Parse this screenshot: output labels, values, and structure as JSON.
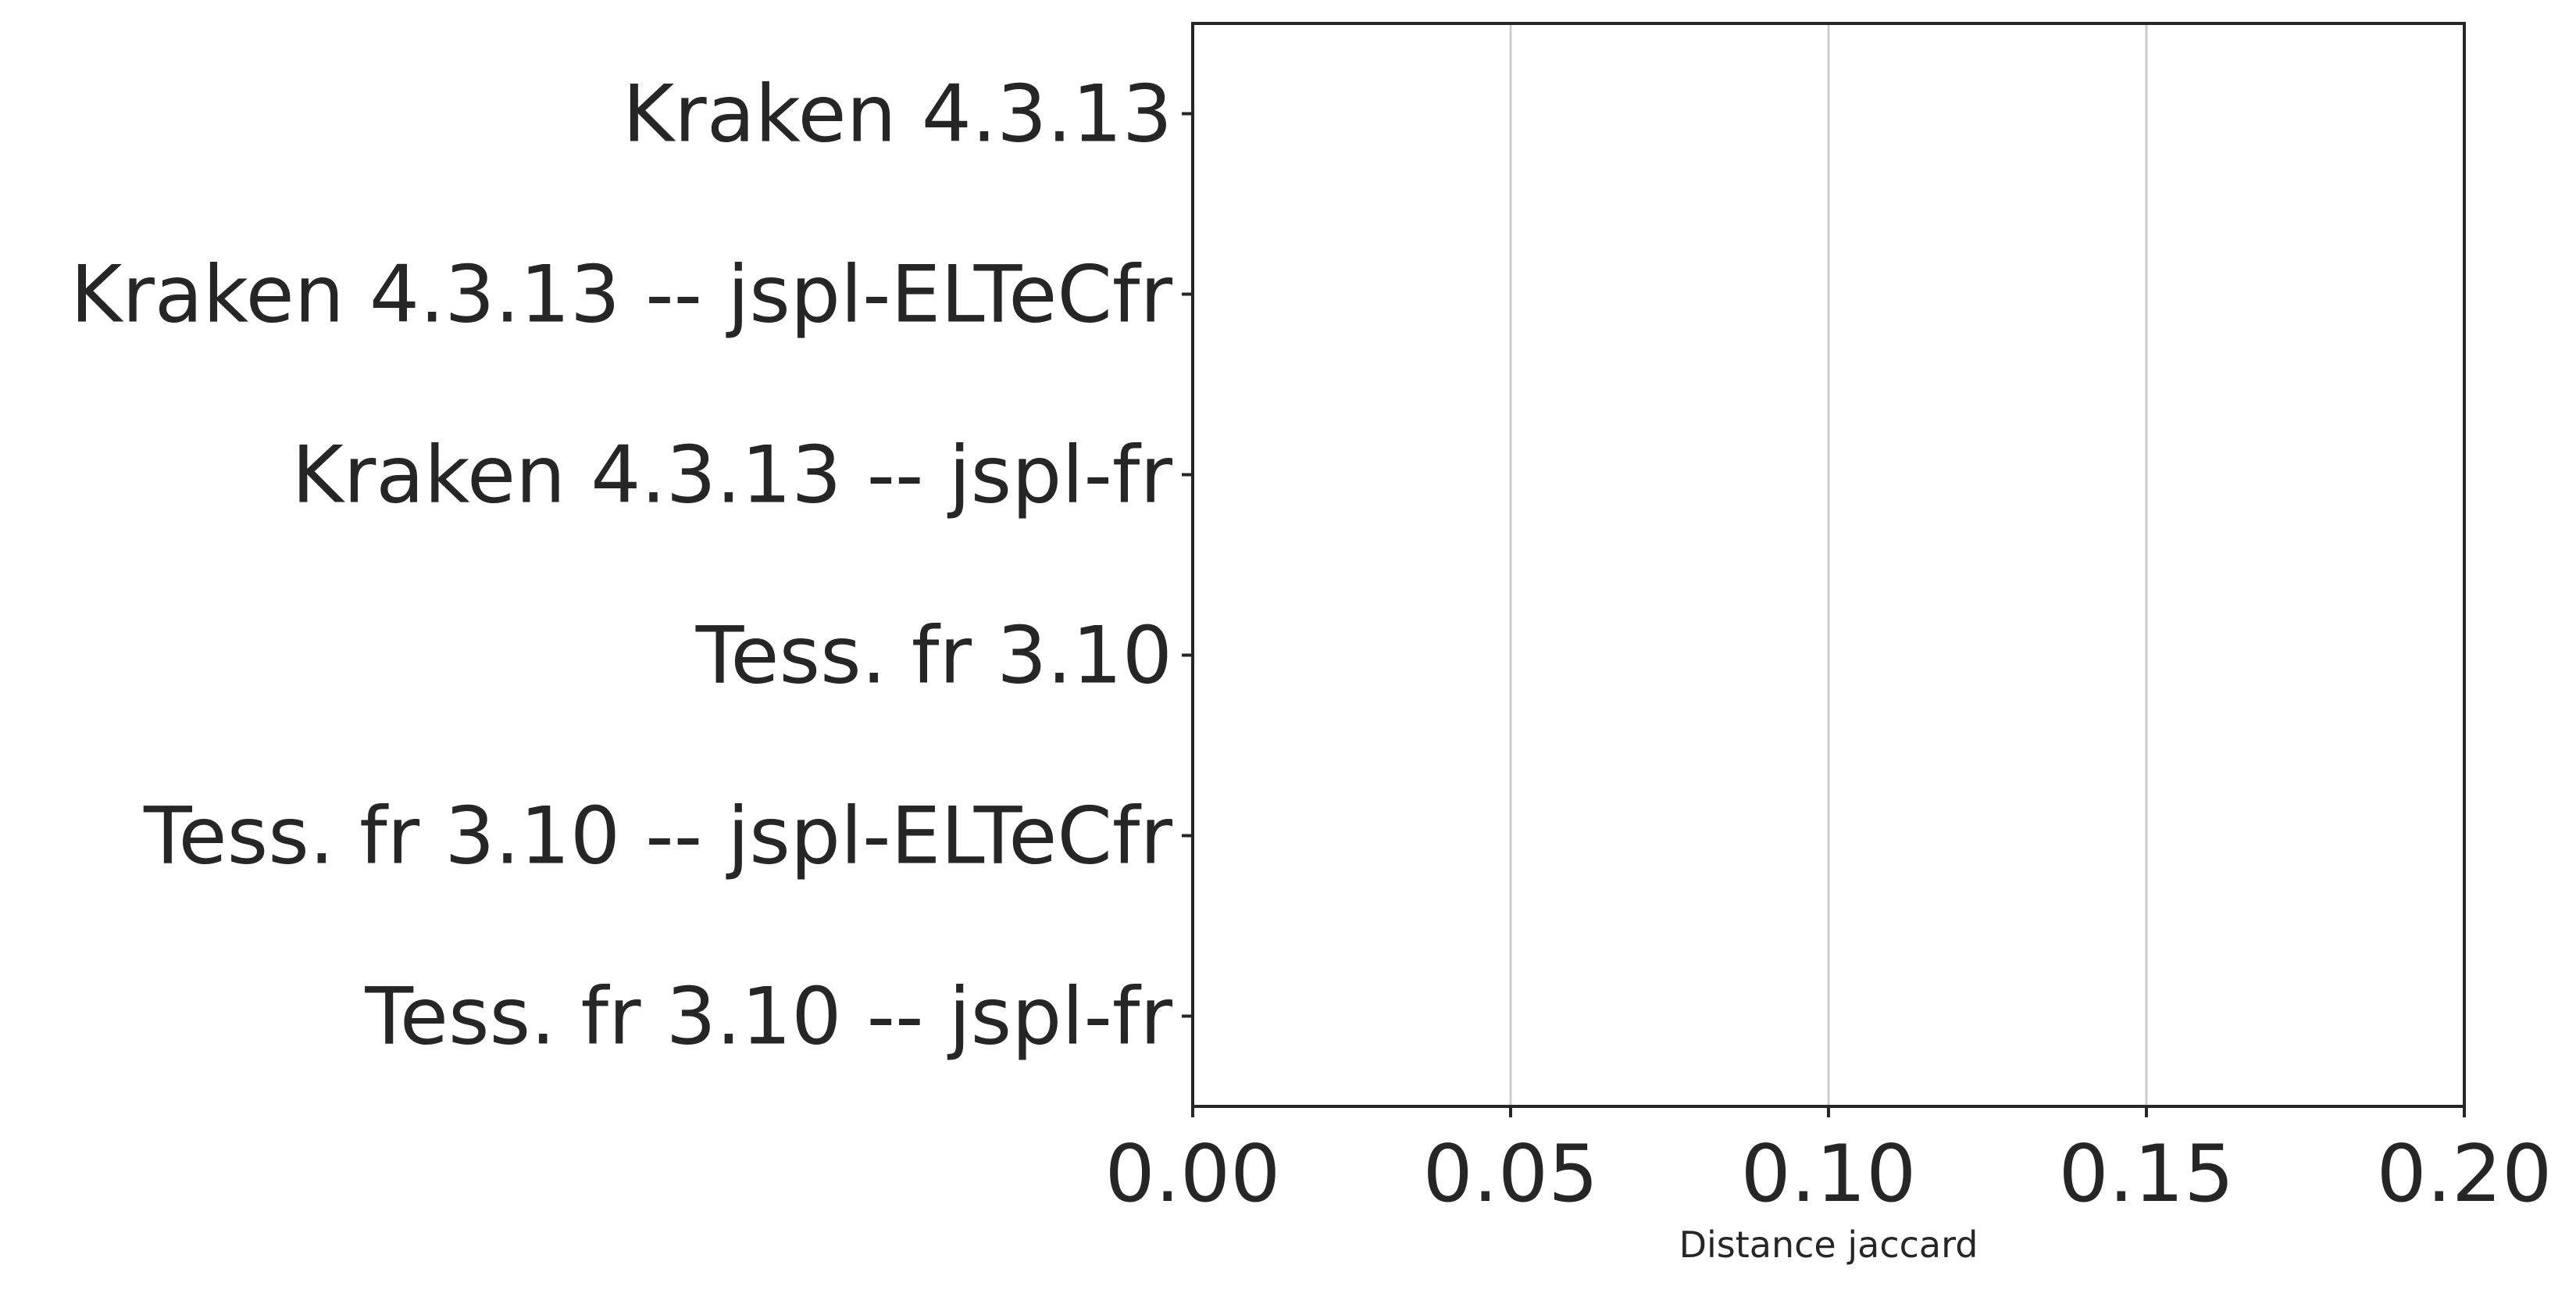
{
  "chart_data": {
    "type": "bar",
    "orientation": "horizontal",
    "categories": [
      "Kraken 4.3.13",
      "Kraken 4.3.13 -- jspl-ELTeCfr",
      "Kraken 4.3.13 -- jspl-fr",
      "Tess. fr 3.10",
      "Tess. fr 3.10 -- jspl-ELTeCfr",
      "Tess. fr 3.10 -- jspl-fr"
    ],
    "values": [
      0,
      0,
      0,
      0,
      0,
      0
    ],
    "xlabel": "Distance jaccard",
    "ylabel": "",
    "xlim": [
      0.0,
      0.2
    ],
    "xticks": [
      "0.00",
      "0.05",
      "0.10",
      "0.15",
      "0.20"
    ],
    "grid": "vertical",
    "colors": {
      "text": "#262626",
      "axis": "#262626",
      "grid": "#cccccc",
      "background": "#ffffff"
    }
  }
}
